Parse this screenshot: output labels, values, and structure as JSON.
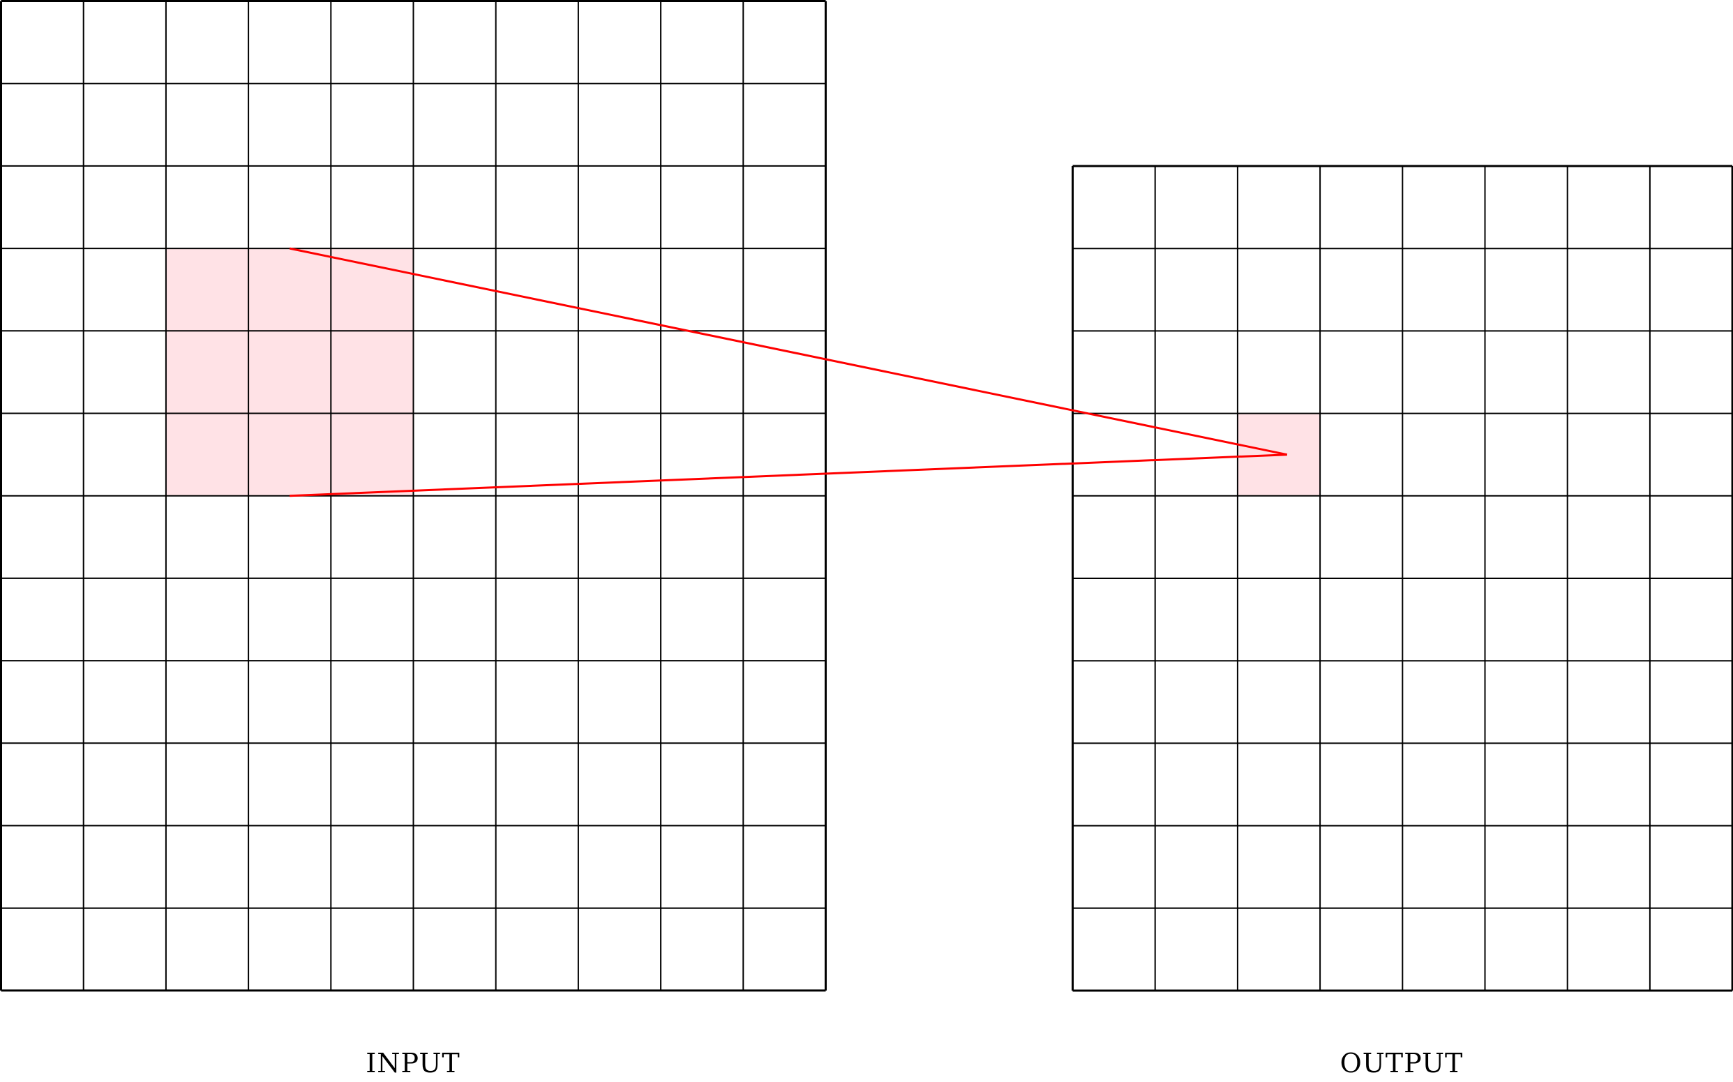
{
  "input_grid": {
    "label": "INPUT",
    "rows": 12,
    "cols": 10,
    "highlight": {
      "row_start": 3,
      "col_start": 2,
      "rows": 3,
      "cols": 3
    }
  },
  "output_grid": {
    "label": "OUTPUT",
    "rows": 10,
    "cols": 8,
    "highlight": {
      "row": 3,
      "col": 2
    }
  },
  "colors": {
    "grid_line": "#000000",
    "highlight_fill": "#ffe2e6",
    "connector": "#ff0000"
  }
}
